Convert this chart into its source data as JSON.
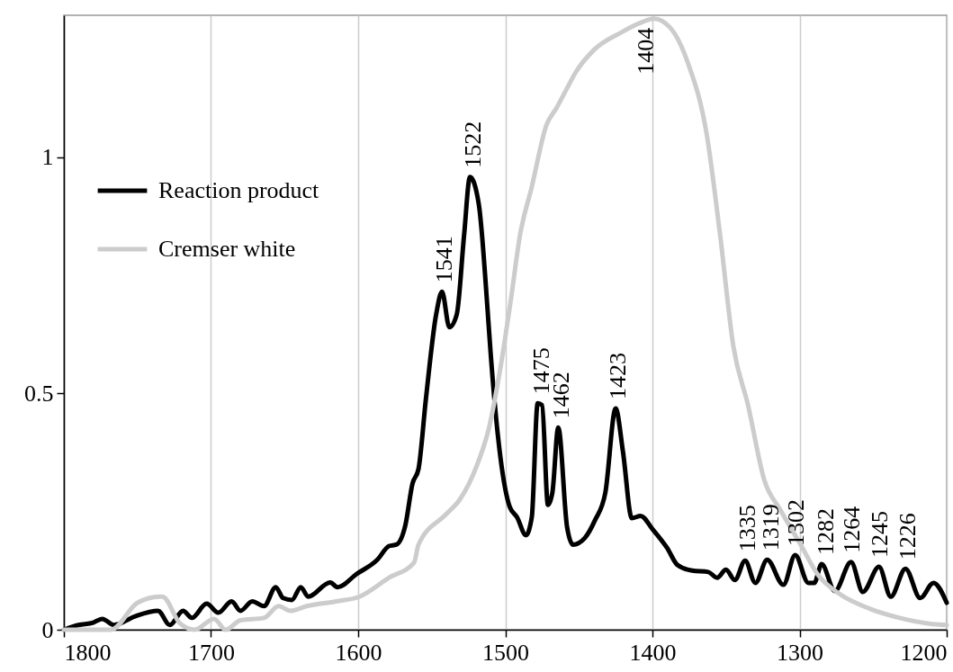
{
  "chart_data": {
    "type": "line",
    "xlim": [
      1800,
      1200
    ],
    "xticks": [
      1800,
      1700,
      1600,
      1500,
      1400,
      1300,
      1200
    ],
    "ylim": [
      0,
      1.3
    ],
    "yticks": [
      0,
      0.5,
      1
    ],
    "grid": "x",
    "legend": "top left",
    "series": [
      {
        "name": "Reaction product",
        "color": "#000000",
        "x": [
          1800,
          1790,
          1780,
          1774,
          1766,
          1752,
          1736,
          1728,
          1719,
          1713,
          1703,
          1695,
          1686,
          1680,
          1672,
          1664,
          1656,
          1651,
          1645,
          1639,
          1634,
          1619,
          1614,
          1601,
          1587,
          1579,
          1574,
          1568,
          1563,
          1559,
          1554,
          1547,
          1543,
          1538,
          1533,
          1528,
          1524,
          1518,
          1512,
          1510,
          1505,
          1497,
          1492,
          1486,
          1482,
          1478,
          1475,
          1471,
          1468,
          1464,
          1458,
          1454,
          1446,
          1439,
          1432,
          1425,
          1420,
          1414,
          1408,
          1400,
          1390,
          1383,
          1373,
          1362,
          1356,
          1350,
          1344,
          1337,
          1330,
          1322,
          1311,
          1303,
          1294,
          1290,
          1285,
          1276,
          1265,
          1257,
          1246,
          1238,
          1228,
          1218,
          1209,
          1200
        ],
        "values": [
          0,
          0.01,
          0.015,
          0.023,
          0.01,
          0.028,
          0.04,
          0.01,
          0.04,
          0.025,
          0.055,
          0.036,
          0.06,
          0.04,
          0.06,
          0.05,
          0.09,
          0.067,
          0.063,
          0.09,
          0.07,
          0.1,
          0.09,
          0.118,
          0.148,
          0.177,
          0.18,
          0.22,
          0.31,
          0.34,
          0.487,
          0.667,
          0.715,
          0.64,
          0.667,
          0.835,
          0.958,
          0.9,
          0.675,
          0.587,
          0.41,
          0.26,
          0.238,
          0.2,
          0.238,
          0.479,
          0.475,
          0.264,
          0.29,
          0.428,
          0.217,
          0.18,
          0.194,
          0.232,
          0.29,
          0.468,
          0.376,
          0.236,
          0.241,
          0.213,
          0.173,
          0.137,
          0.125,
          0.122,
          0.11,
          0.127,
          0.105,
          0.146,
          0.099,
          0.148,
          0.095,
          0.158,
          0.099,
          0.099,
          0.139,
          0.082,
          0.143,
          0.08,
          0.133,
          0.07,
          0.129,
          0.067,
          0.099,
          0.057
        ]
      },
      {
        "name": "Cremser white",
        "color": "#cccccc",
        "x": [
          1800,
          1793,
          1768,
          1750,
          1735,
          1733,
          1721,
          1711,
          1698,
          1690,
          1680,
          1664,
          1654,
          1646,
          1635,
          1615,
          1599,
          1579,
          1562,
          1559,
          1540,
          1531,
          1519,
          1511,
          1503,
          1496,
          1490,
          1482,
          1472,
          1465,
          1459,
          1452,
          1440,
          1421,
          1409,
          1399,
          1388,
          1376,
          1363,
          1354,
          1345,
          1335,
          1324,
          1313,
          1300,
          1287,
          1273,
          1252,
          1232,
          1212,
          1200
        ],
        "values": [
          0,
          0,
          0,
          0.057,
          0.07,
          0.07,
          0.013,
          0,
          0.023,
          0,
          0.02,
          0.025,
          0.05,
          0.04,
          0.05,
          0.06,
          0.07,
          0.11,
          0.142,
          0.18,
          0.245,
          0.275,
          0.35,
          0.428,
          0.56,
          0.703,
          0.835,
          0.937,
          1.068,
          1.105,
          1.14,
          1.18,
          1.226,
          1.264,
          1.283,
          1.293,
          1.274,
          1.2,
          1.046,
          0.835,
          0.6,
          0.475,
          0.317,
          0.253,
          0.184,
          0.114,
          0.076,
          0.044,
          0.025,
          0.013,
          0.01
        ]
      }
    ],
    "annotations": [
      {
        "text": "1541",
        "x": 1541,
        "y": 0.715
      },
      {
        "text": "1522",
        "x": 1522,
        "y": 0.958
      },
      {
        "text": "1475",
        "x": 1475,
        "y": 0.479
      },
      {
        "text": "1462",
        "x": 1462,
        "y": 0.428
      },
      {
        "text": "1423",
        "x": 1423,
        "y": 0.468
      },
      {
        "text": "1404",
        "x": 1404,
        "y": 1.293
      },
      {
        "text": "1335",
        "x": 1335,
        "y": 0.146
      },
      {
        "text": "1319",
        "x": 1319,
        "y": 0.148
      },
      {
        "text": "1302",
        "x": 1302,
        "y": 0.158
      },
      {
        "text": "1282",
        "x": 1282,
        "y": 0.139
      },
      {
        "text": "1264",
        "x": 1264,
        "y": 0.143
      },
      {
        "text": "1245",
        "x": 1245,
        "y": 0.133
      },
      {
        "text": "1226",
        "x": 1226,
        "y": 0.129
      }
    ]
  }
}
